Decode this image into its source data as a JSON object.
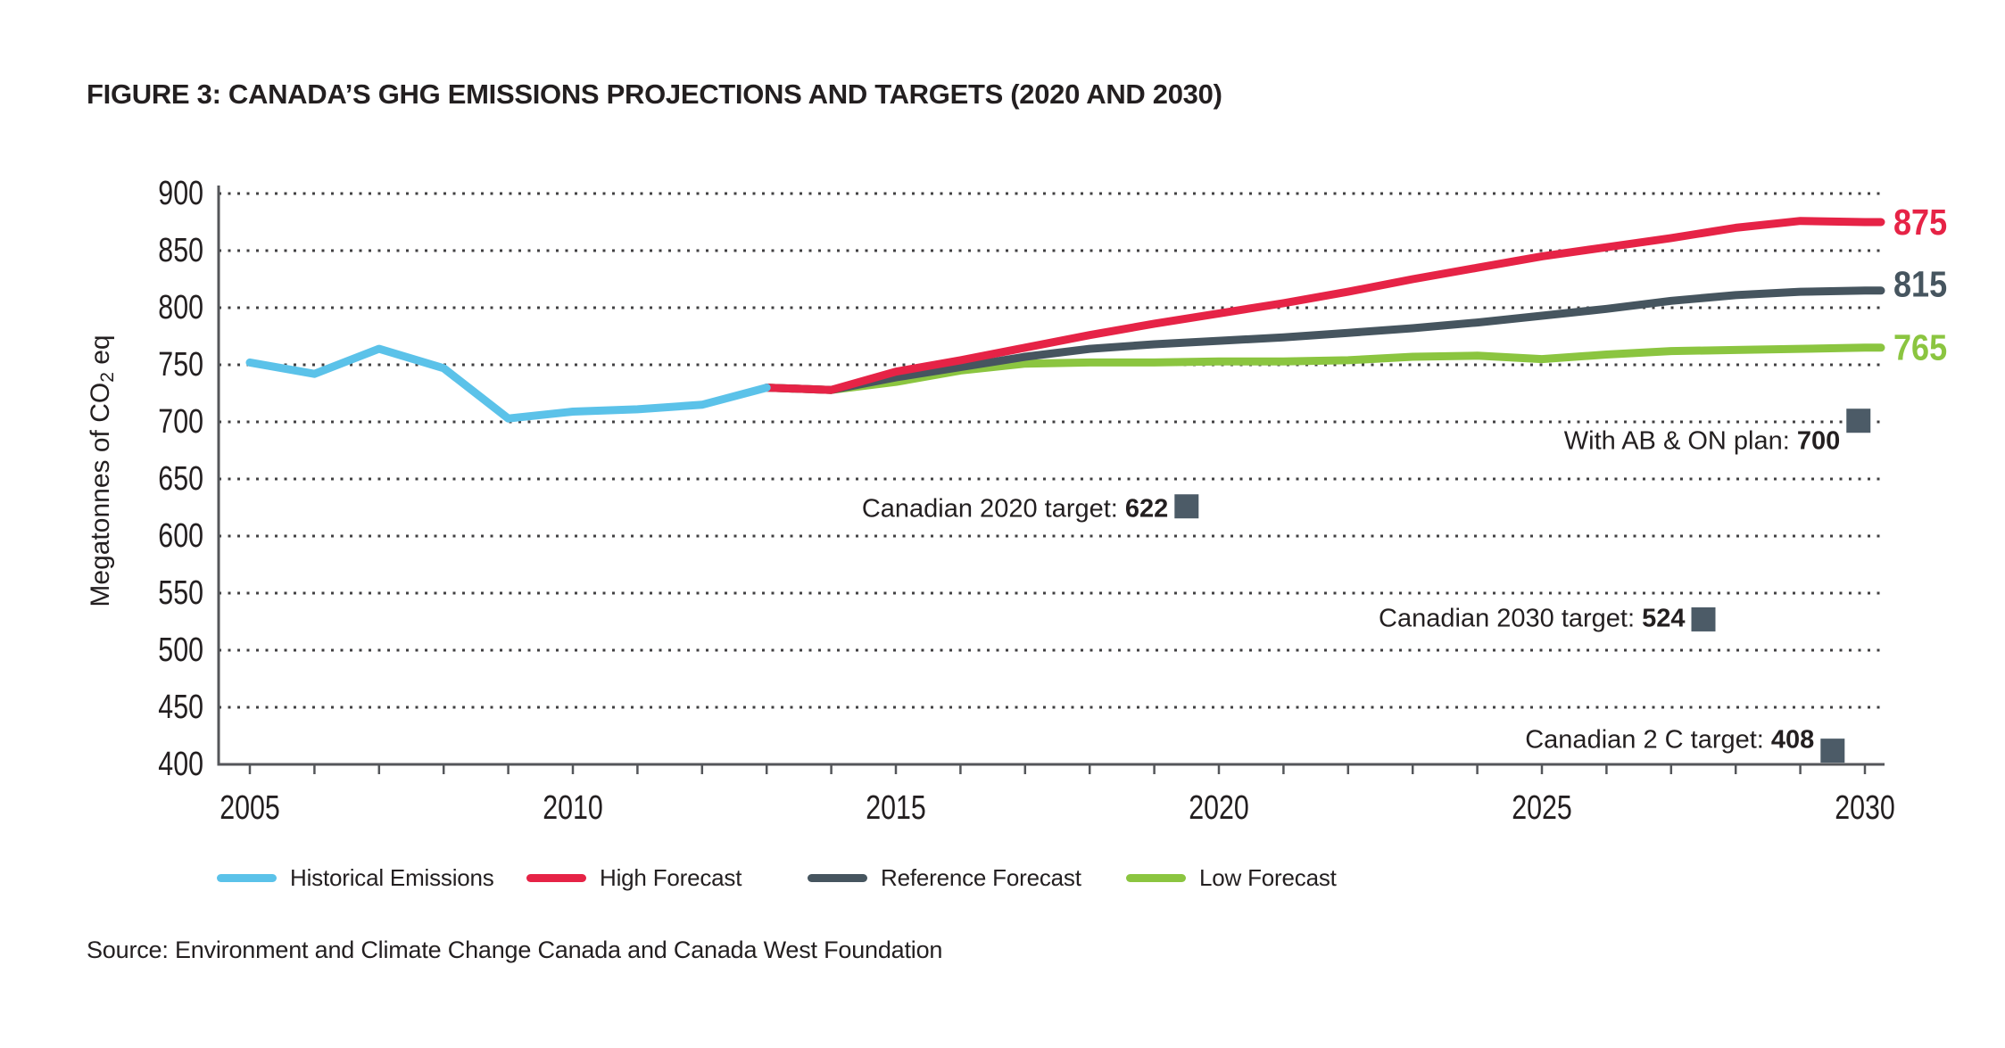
{
  "figure": {
    "title": "FIGURE 3: CANADA’S GHG EMISSIONS PROJECTIONS AND TARGETS (2020 AND 2030)",
    "source": "Source: Environment and Climate Change Canada and Canada West Foundation"
  },
  "colors": {
    "historical": "#5BC2E9",
    "high": "#E62346",
    "reference": "#46555F",
    "low": "#8BC540",
    "marker": "#4C5B67",
    "grid_dots": "#414042",
    "axis": "#54565A",
    "text": "#231F20"
  },
  "legend": {
    "items": [
      {
        "label": "Historical Emissions",
        "color_key": "historical"
      },
      {
        "label": "High Forecast",
        "color_key": "high"
      },
      {
        "label": "Reference Forecast",
        "color_key": "reference"
      },
      {
        "label": "Low Forecast",
        "color_key": "low"
      }
    ]
  },
  "chart_data": {
    "type": "line",
    "title": "FIGURE 3: CANADA’S GHG EMISSIONS PROJECTIONS AND TARGETS (2020 AND 2030)",
    "ylabel": "Megatonnes of CO2 eq",
    "ylabel_display": {
      "pre": "Megatonnes of CO",
      "sub": "2",
      "post": " eq"
    },
    "ylim": [
      400,
      900
    ],
    "yticks": [
      900,
      850,
      800,
      750,
      700,
      650,
      600,
      550,
      500,
      450,
      400
    ],
    "xticks": [
      2005,
      2010,
      2015,
      2020,
      2025,
      2030
    ],
    "x_range": [
      2005,
      2030
    ],
    "grid": "horizontal-dotted",
    "legend_position": "bottom",
    "series": [
      {
        "name": "Historical Emissions",
        "color_key": "historical",
        "x_start": 2005,
        "values": [
          752,
          742,
          764,
          747,
          703,
          709,
          711,
          715,
          730
        ]
      },
      {
        "name": "High Forecast",
        "color_key": "high",
        "x_start": 2013,
        "values": [
          730,
          728,
          744,
          754,
          765,
          776,
          786,
          795,
          804,
          814,
          825,
          835,
          845,
          853,
          861,
          870,
          876,
          875
        ],
        "end_label": "875"
      },
      {
        "name": "Reference Forecast",
        "color_key": "reference",
        "x_start": 2013,
        "values": [
          730,
          728,
          739,
          748,
          757,
          764,
          768,
          771,
          774,
          778,
          782,
          787,
          793,
          799,
          806,
          811,
          814,
          815
        ],
        "end_label": "815"
      },
      {
        "name": "Low Forecast",
        "color_key": "low",
        "x_start": 2013,
        "values": [
          730,
          728,
          735,
          745,
          751,
          752,
          752,
          753,
          753,
          754,
          757,
          758,
          755,
          759,
          762,
          763,
          764,
          765
        ],
        "end_label": "765"
      }
    ],
    "targets": [
      {
        "label": "With AB & ON plan: ",
        "value": "700",
        "marker_year": 2029.9,
        "marker_value": 701
      },
      {
        "label": "Canadian 2020 target: ",
        "value": "622",
        "marker_year": 2019.5,
        "marker_value": 626
      },
      {
        "label": "Canadian 2030 target: ",
        "value": "524",
        "marker_year": 2027.5,
        "marker_value": 527
      },
      {
        "label": "Canadian 2 C target: ",
        "value": "408",
        "marker_year": 2029.5,
        "marker_value": 412
      }
    ]
  }
}
